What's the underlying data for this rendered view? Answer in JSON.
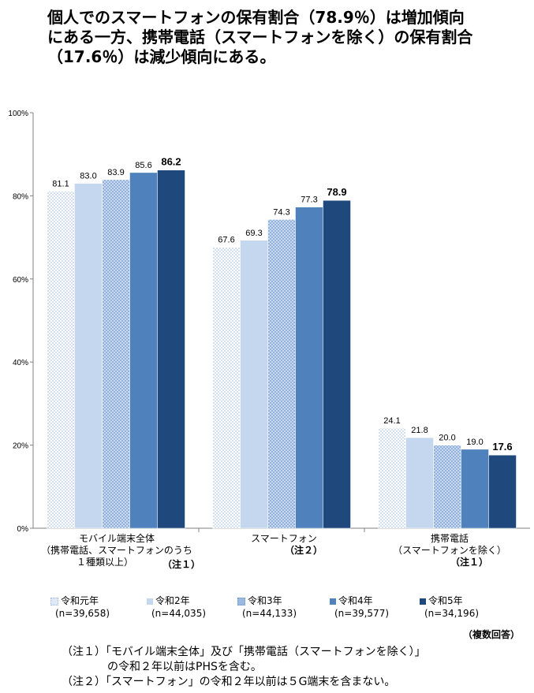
{
  "title": {
    "line1": "個人でのスマートフォンの保有割合（78.9％）は増加傾向",
    "line2": "にある一方、携帯電話（スマートフォンを除く）の保有割合",
    "line3": "（17.6％）は減少傾向にある。"
  },
  "chart_data": {
    "type": "bar",
    "categories": [
      "モバイル端末全体",
      "スマートフォン",
      "携帯電話"
    ],
    "category_labels": [
      {
        "lines": [
          "モバイル端末全体",
          "（携帯電話、スマートフォンのうち",
          "１種類以上）"
        ],
        "note": "（注１）"
      },
      {
        "lines": [
          "スマートフォン"
        ],
        "note": "（注２）"
      },
      {
        "lines": [
          "携帯電話",
          "（スマートフォンを除く）"
        ],
        "note": "（注１）"
      }
    ],
    "series": [
      {
        "name": "令和元年",
        "n": "(n=39,658)",
        "values": [
          81.1,
          67.6,
          24.1
        ],
        "labels": [
          "81.1",
          "67.6",
          "24.1"
        ],
        "color": "#dfe8f4",
        "pattern": "dots"
      },
      {
        "name": "令和2年",
        "n": "(n=44,035)",
        "values": [
          83.0,
          69.3,
          21.8
        ],
        "labels": [
          "83.0",
          "69.3",
          "21.8"
        ],
        "color": "#c5d7ee",
        "pattern": "solid"
      },
      {
        "name": "令和3年",
        "n": "(n=44,133)",
        "values": [
          83.9,
          74.3,
          20.0
        ],
        "labels": [
          "83.9",
          "74.3",
          "20.0"
        ],
        "color": "#9bb8e0",
        "pattern": "dots"
      },
      {
        "name": "令和4年",
        "n": "(n=39,577)",
        "values": [
          85.6,
          77.3,
          19.0
        ],
        "labels": [
          "85.6",
          "77.3",
          "19.0"
        ],
        "color": "#4f81bd",
        "pattern": "solid"
      },
      {
        "name": "令和5年",
        "n": "(n=34,196)",
        "values": [
          86.2,
          78.9,
          17.6
        ],
        "labels": [
          "86.2",
          "78.9",
          "17.6"
        ],
        "color": "#1f497d",
        "pattern": "solid",
        "emphasis": true
      }
    ],
    "yticks": [
      "0%",
      "20%",
      "40%",
      "60%",
      "80%",
      "100%"
    ],
    "ylim": [
      0,
      100
    ],
    "legend_position": "bottom"
  },
  "multiple_answer": "（複数回答）",
  "footnotes": {
    "note1_line1": "（注１）「モバイル端末全体」及び「携帯電話（スマートフォンを除く）」",
    "note1_line2": "の令和２年以前はPHSを含む。",
    "note2": "（注２）「スマートフォン」の令和２年以前は５G端末を含まない。"
  }
}
